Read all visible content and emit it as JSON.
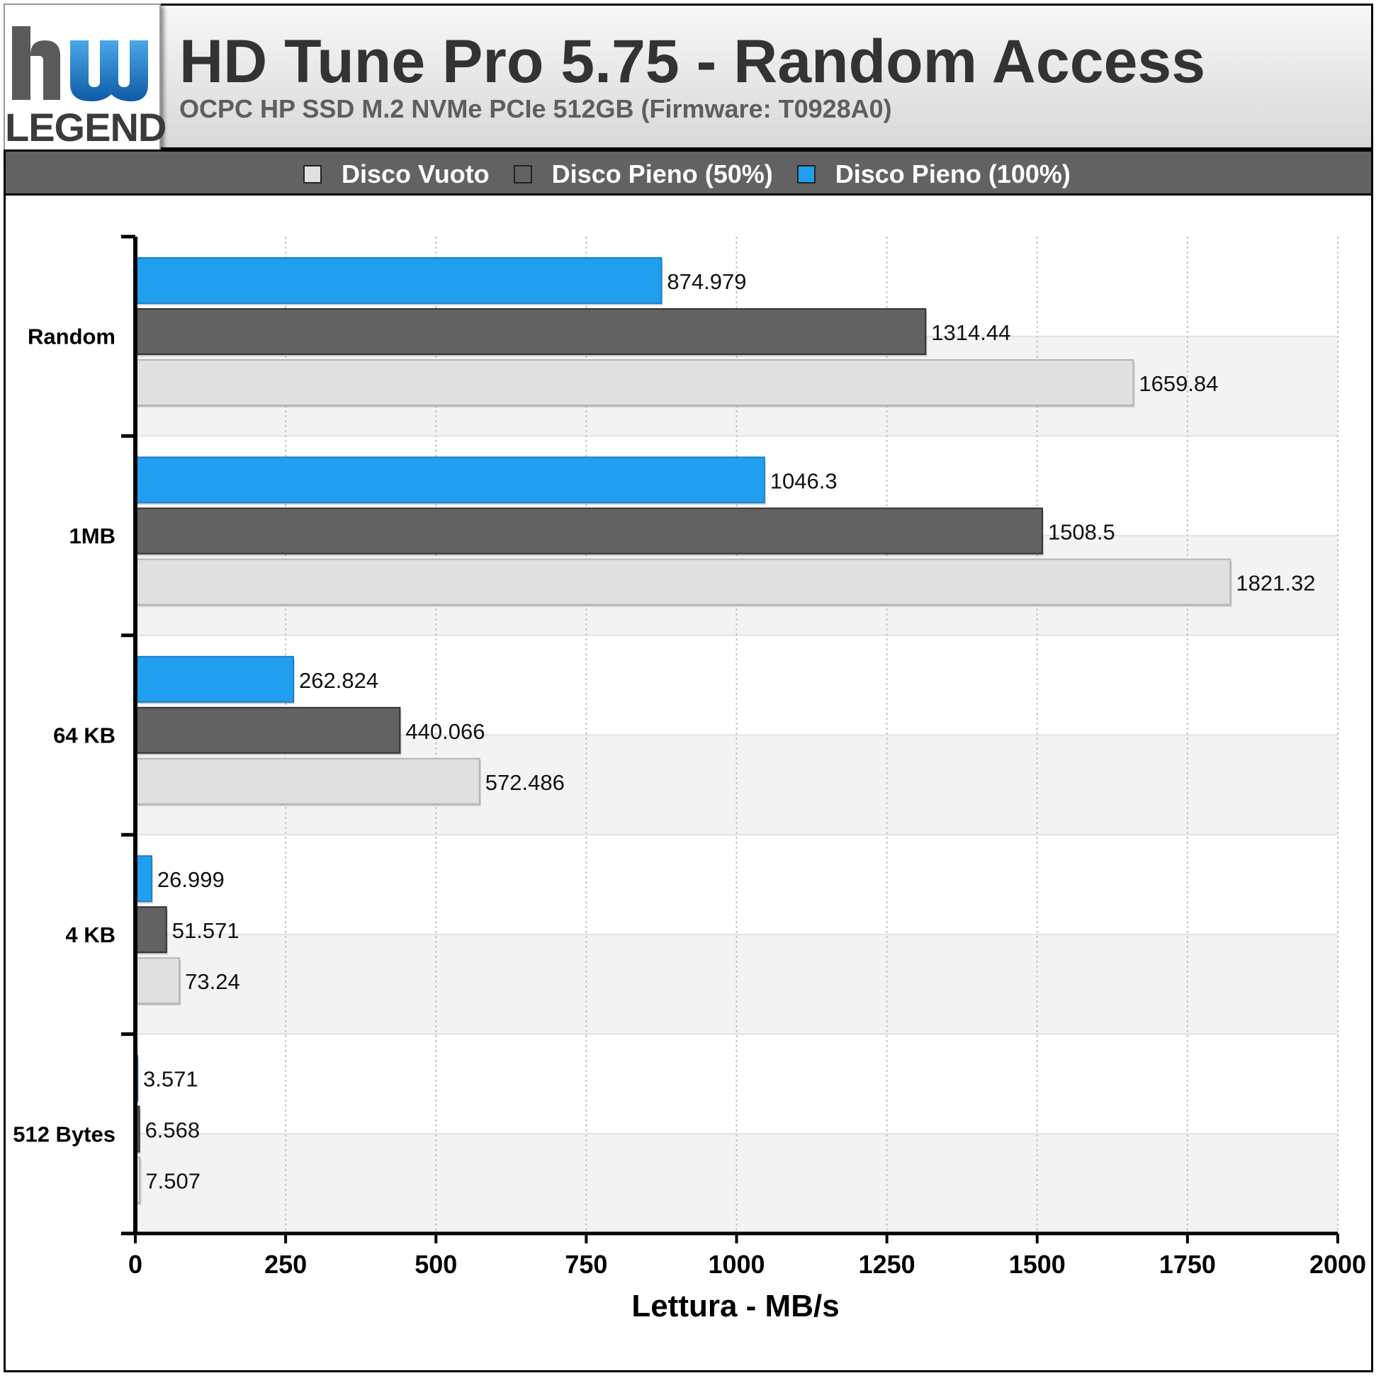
{
  "header": {
    "logo_text": "LEGEND",
    "title": "HD Tune Pro 5.75 - Random Access",
    "subtitle": "OCPC HP SSD M.2 NVMe PCIe 512GB (Firmware: T0928A0)"
  },
  "colors": {
    "disco_vuoto": "#e0e0e0",
    "disco_pieno_50": "#626262",
    "disco_pieno_100": "#219fef",
    "logo_blue": "#1e74c7"
  },
  "chart_data": {
    "type": "bar",
    "orientation": "horizontal",
    "categories": [
      "Random",
      "1MB",
      "64 KB",
      "4 KB",
      "512 Bytes"
    ],
    "series": [
      {
        "name": "Disco Pieno (100%)",
        "color": "#219fef",
        "values": [
          874.979,
          1046.3,
          262.824,
          26.999,
          3.571
        ],
        "labels": [
          "874.979",
          "1046.3",
          "262.824",
          "26.999",
          "3.571"
        ]
      },
      {
        "name": "Disco Pieno (50%)",
        "color": "#626262",
        "values": [
          1314.44,
          1508.5,
          440.066,
          51.571,
          6.568
        ],
        "labels": [
          "1314.44",
          "1508.5",
          "440.066",
          "51.571",
          "6.568"
        ]
      },
      {
        "name": "Disco Vuoto",
        "color": "#e0e0e0",
        "values": [
          1659.84,
          1821.32,
          572.486,
          73.24,
          7.507
        ],
        "labels": [
          "1659.84",
          "1821.32",
          "572.486",
          "73.24",
          "7.507"
        ]
      }
    ],
    "legend": [
      {
        "name": "Disco Vuoto",
        "color": "#e0e0e0"
      },
      {
        "name": "Disco Pieno (50%)",
        "color": "#626262"
      },
      {
        "name": "Disco Pieno (100%)",
        "color": "#219fef"
      }
    ],
    "legend_position": "top",
    "xlabel": "Lettura - MB/s",
    "xlim": [
      0,
      2000
    ],
    "xticks": [
      0,
      250,
      500,
      750,
      1000,
      1250,
      1500,
      1750,
      2000
    ],
    "grid": true
  }
}
